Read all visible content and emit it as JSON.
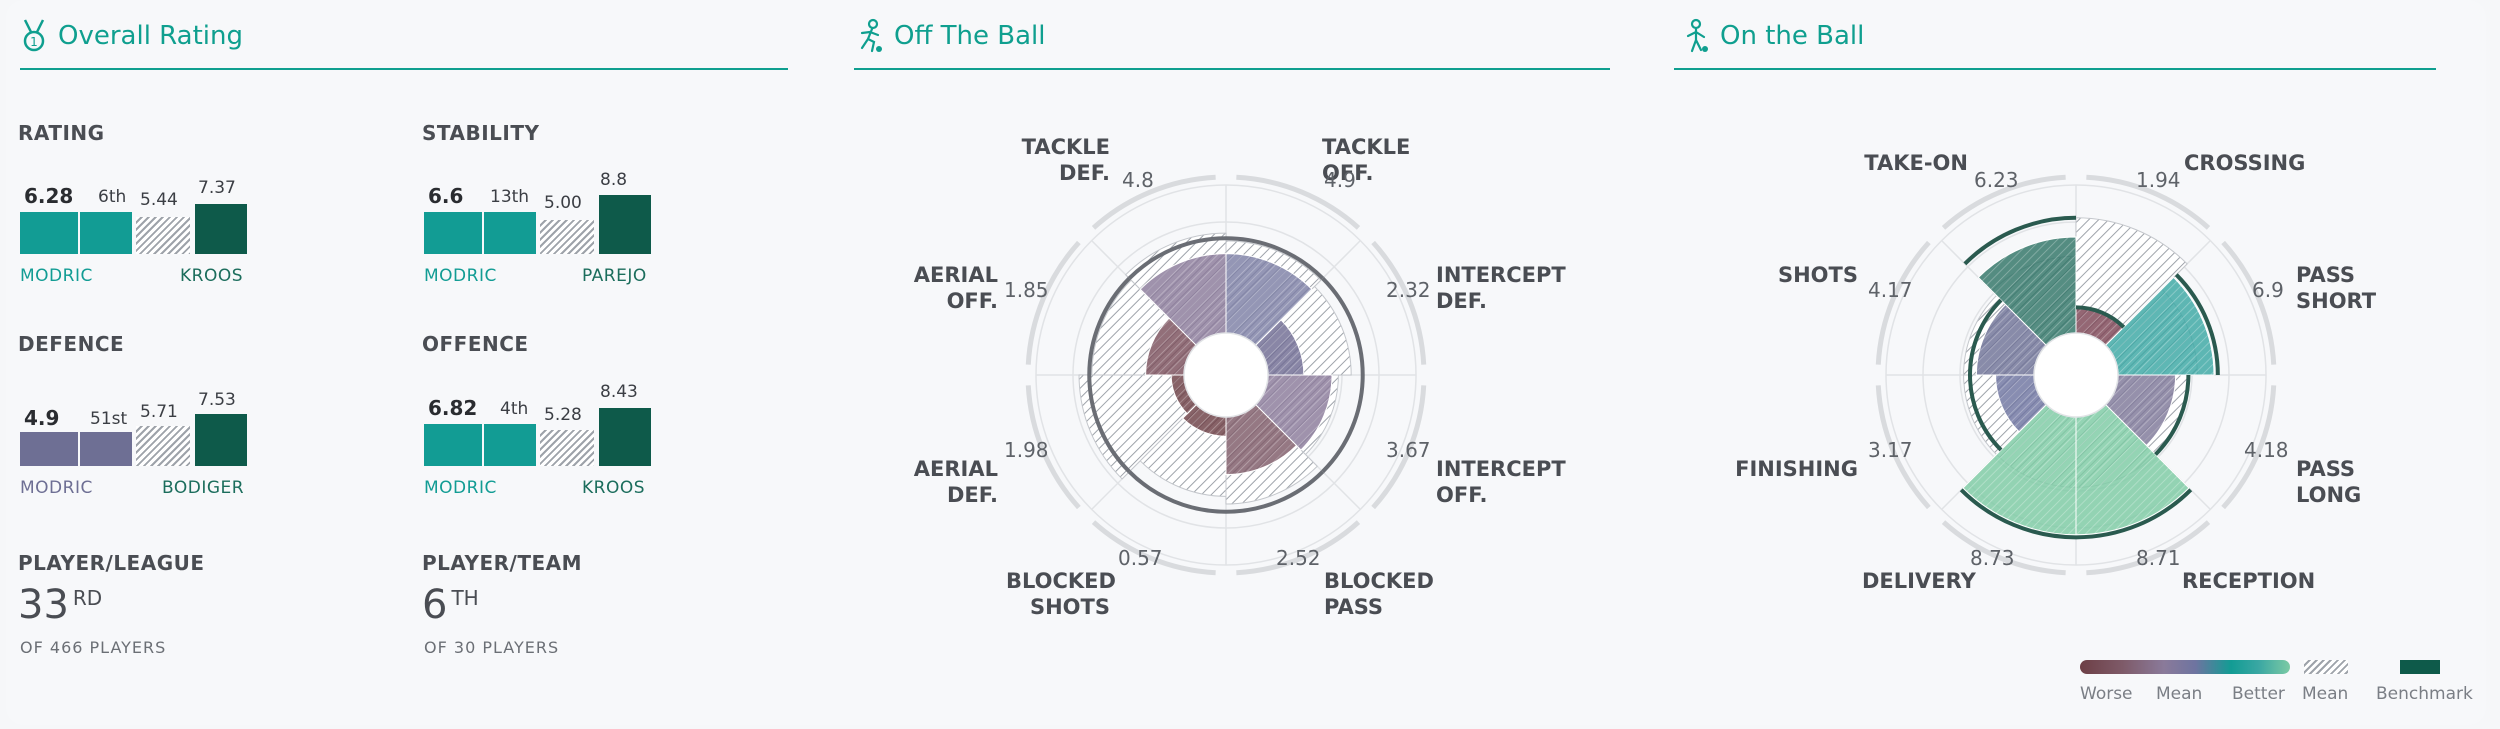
{
  "sections": {
    "overall": "Overall Rating",
    "off_ball": "Off The Ball",
    "on_ball": "On the Ball"
  },
  "metrics": {
    "rating": {
      "label": "RATING",
      "value": "6.28",
      "rank": "6th",
      "mean": "5.44",
      "bench": "7.37",
      "player": "MODRIC",
      "bench_name": "KROOS"
    },
    "stability": {
      "label": "STABILITY",
      "value": "6.6",
      "rank": "13th",
      "mean": "5.00",
      "bench": "8.8",
      "player": "MODRIC",
      "bench_name": "PAREJO"
    },
    "defence": {
      "label": "DEFENCE",
      "value": "4.9",
      "rank": "51st",
      "mean": "5.71",
      "bench": "7.53",
      "player": "MODRIC",
      "bench_name": "BODIGER"
    },
    "offence": {
      "label": "OFFENCE",
      "value": "6.82",
      "rank": "4th",
      "mean": "5.28",
      "bench": "8.43",
      "player": "MODRIC",
      "bench_name": "KROOS"
    }
  },
  "ranks": {
    "league": {
      "label": "PLAYER/LEAGUE",
      "num": "33",
      "suffix": "RD",
      "sub": "OF 466 PLAYERS"
    },
    "team": {
      "label": "PLAYER/TEAM",
      "num": "6",
      "suffix": "TH",
      "sub": "OF 30 PLAYERS"
    }
  },
  "off_ball_axes": [
    {
      "l1": "TACKLE",
      "l2": "OFF.",
      "value": "4.9"
    },
    {
      "l1": "INTERCEPT",
      "l2": "DEF.",
      "value": "2.32"
    },
    {
      "l1": "INTERCEPT",
      "l2": "OFF.",
      "value": "3.67"
    },
    {
      "l1": "BLOCKED",
      "l2": "PASS",
      "value": "2.52"
    },
    {
      "l1": "BLOCKED",
      "l2": "SHOTS",
      "value": "0.57"
    },
    {
      "l1": "AERIAL",
      "l2": "DEF.",
      "value": "1.98"
    },
    {
      "l1": "AERIAL",
      "l2": "OFF.",
      "value": "1.85"
    },
    {
      "l1": "TACKLE",
      "l2": "DEF.",
      "value": "4.8"
    }
  ],
  "on_ball_axes": [
    {
      "l1": "CROSSING",
      "l2": "",
      "value": "1.94"
    },
    {
      "l1": "PASS",
      "l2": "SHORT",
      "value": "6.9"
    },
    {
      "l1": "PASS",
      "l2": "LONG",
      "value": "4.18"
    },
    {
      "l1": "RECEPTION",
      "l2": "",
      "value": "8.71"
    },
    {
      "l1": "DELIVERY",
      "l2": "",
      "value": "8.73"
    },
    {
      "l1": "FINISHING",
      "l2": "",
      "value": "3.17"
    },
    {
      "l1": "SHOTS",
      "l2": "",
      "value": "4.17"
    },
    {
      "l1": "TAKE-ON",
      "l2": "",
      "value": "6.23"
    }
  ],
  "legend": {
    "worse": "Worse",
    "mean": "Mean",
    "better": "Better",
    "mean2": "Mean",
    "benchmark": "Benchmark"
  },
  "colors": {
    "accent": "#0f9f8f",
    "player_teal": "#129c94",
    "player_purple": "#6e6f94",
    "benchmark": "#0e5a4a"
  },
  "chart_data": [
    {
      "type": "polar-area",
      "title": "Off The Ball",
      "categories": [
        "TACKLE OFF.",
        "INTERCEPT DEF.",
        "INTERCEPT OFF.",
        "BLOCKED PASS",
        "BLOCKED SHOTS",
        "AERIAL DEF.",
        "AERIAL OFF.",
        "TACKLE DEF."
      ],
      "values": [
        4.9,
        2.32,
        3.67,
        2.52,
        0.57,
        1.98,
        1.85,
        4.8
      ],
      "fill_scores": [
        0.62,
        0.28,
        0.5,
        0.45,
        0.15,
        0.1,
        0.3,
        0.62
      ],
      "mean_scores": [
        0.72,
        0.65,
        0.55,
        0.68,
        0.62,
        0.82,
        0.72,
        0.78
      ],
      "benchmark_scores": [
        0.74,
        0.74,
        0.74,
        0.74,
        0.74,
        0.74,
        0.74,
        0.74
      ],
      "fill_colors": [
        "#7d7fa5",
        "#6f6b92",
        "#8a7a9a",
        "#7e5a68",
        "#6d3f46",
        "#6d3f46",
        "#7a4f5c",
        "#8a7a9a"
      ]
    },
    {
      "type": "polar-area",
      "title": "On the Ball",
      "categories": [
        "CROSSING",
        "PASS SHORT",
        "PASS LONG",
        "RECEPTION",
        "DELIVERY",
        "FINISHING",
        "SHOTS",
        "TAKE-ON"
      ],
      "values": [
        1.94,
        6.9,
        4.18,
        8.71,
        8.73,
        3.17,
        4.17,
        6.23
      ],
      "fill_scores": [
        0.2,
        0.75,
        0.45,
        0.92,
        0.92,
        0.3,
        0.45,
        0.75
      ],
      "mean_scores": [
        0.9,
        0.62,
        0.55,
        0.55,
        0.55,
        0.55,
        0.55,
        0.6
      ],
      "benchmark_scores": [
        0.2,
        0.78,
        0.55,
        0.94,
        0.94,
        0.5,
        0.5,
        0.9
      ],
      "fill_colors": [
        "#7d4555",
        "#3aa7a3",
        "#7e7898",
        "#7ccaa4",
        "#7ccaa4",
        "#6e74a0",
        "#6e7196",
        "#2f7467"
      ]
    }
  ]
}
